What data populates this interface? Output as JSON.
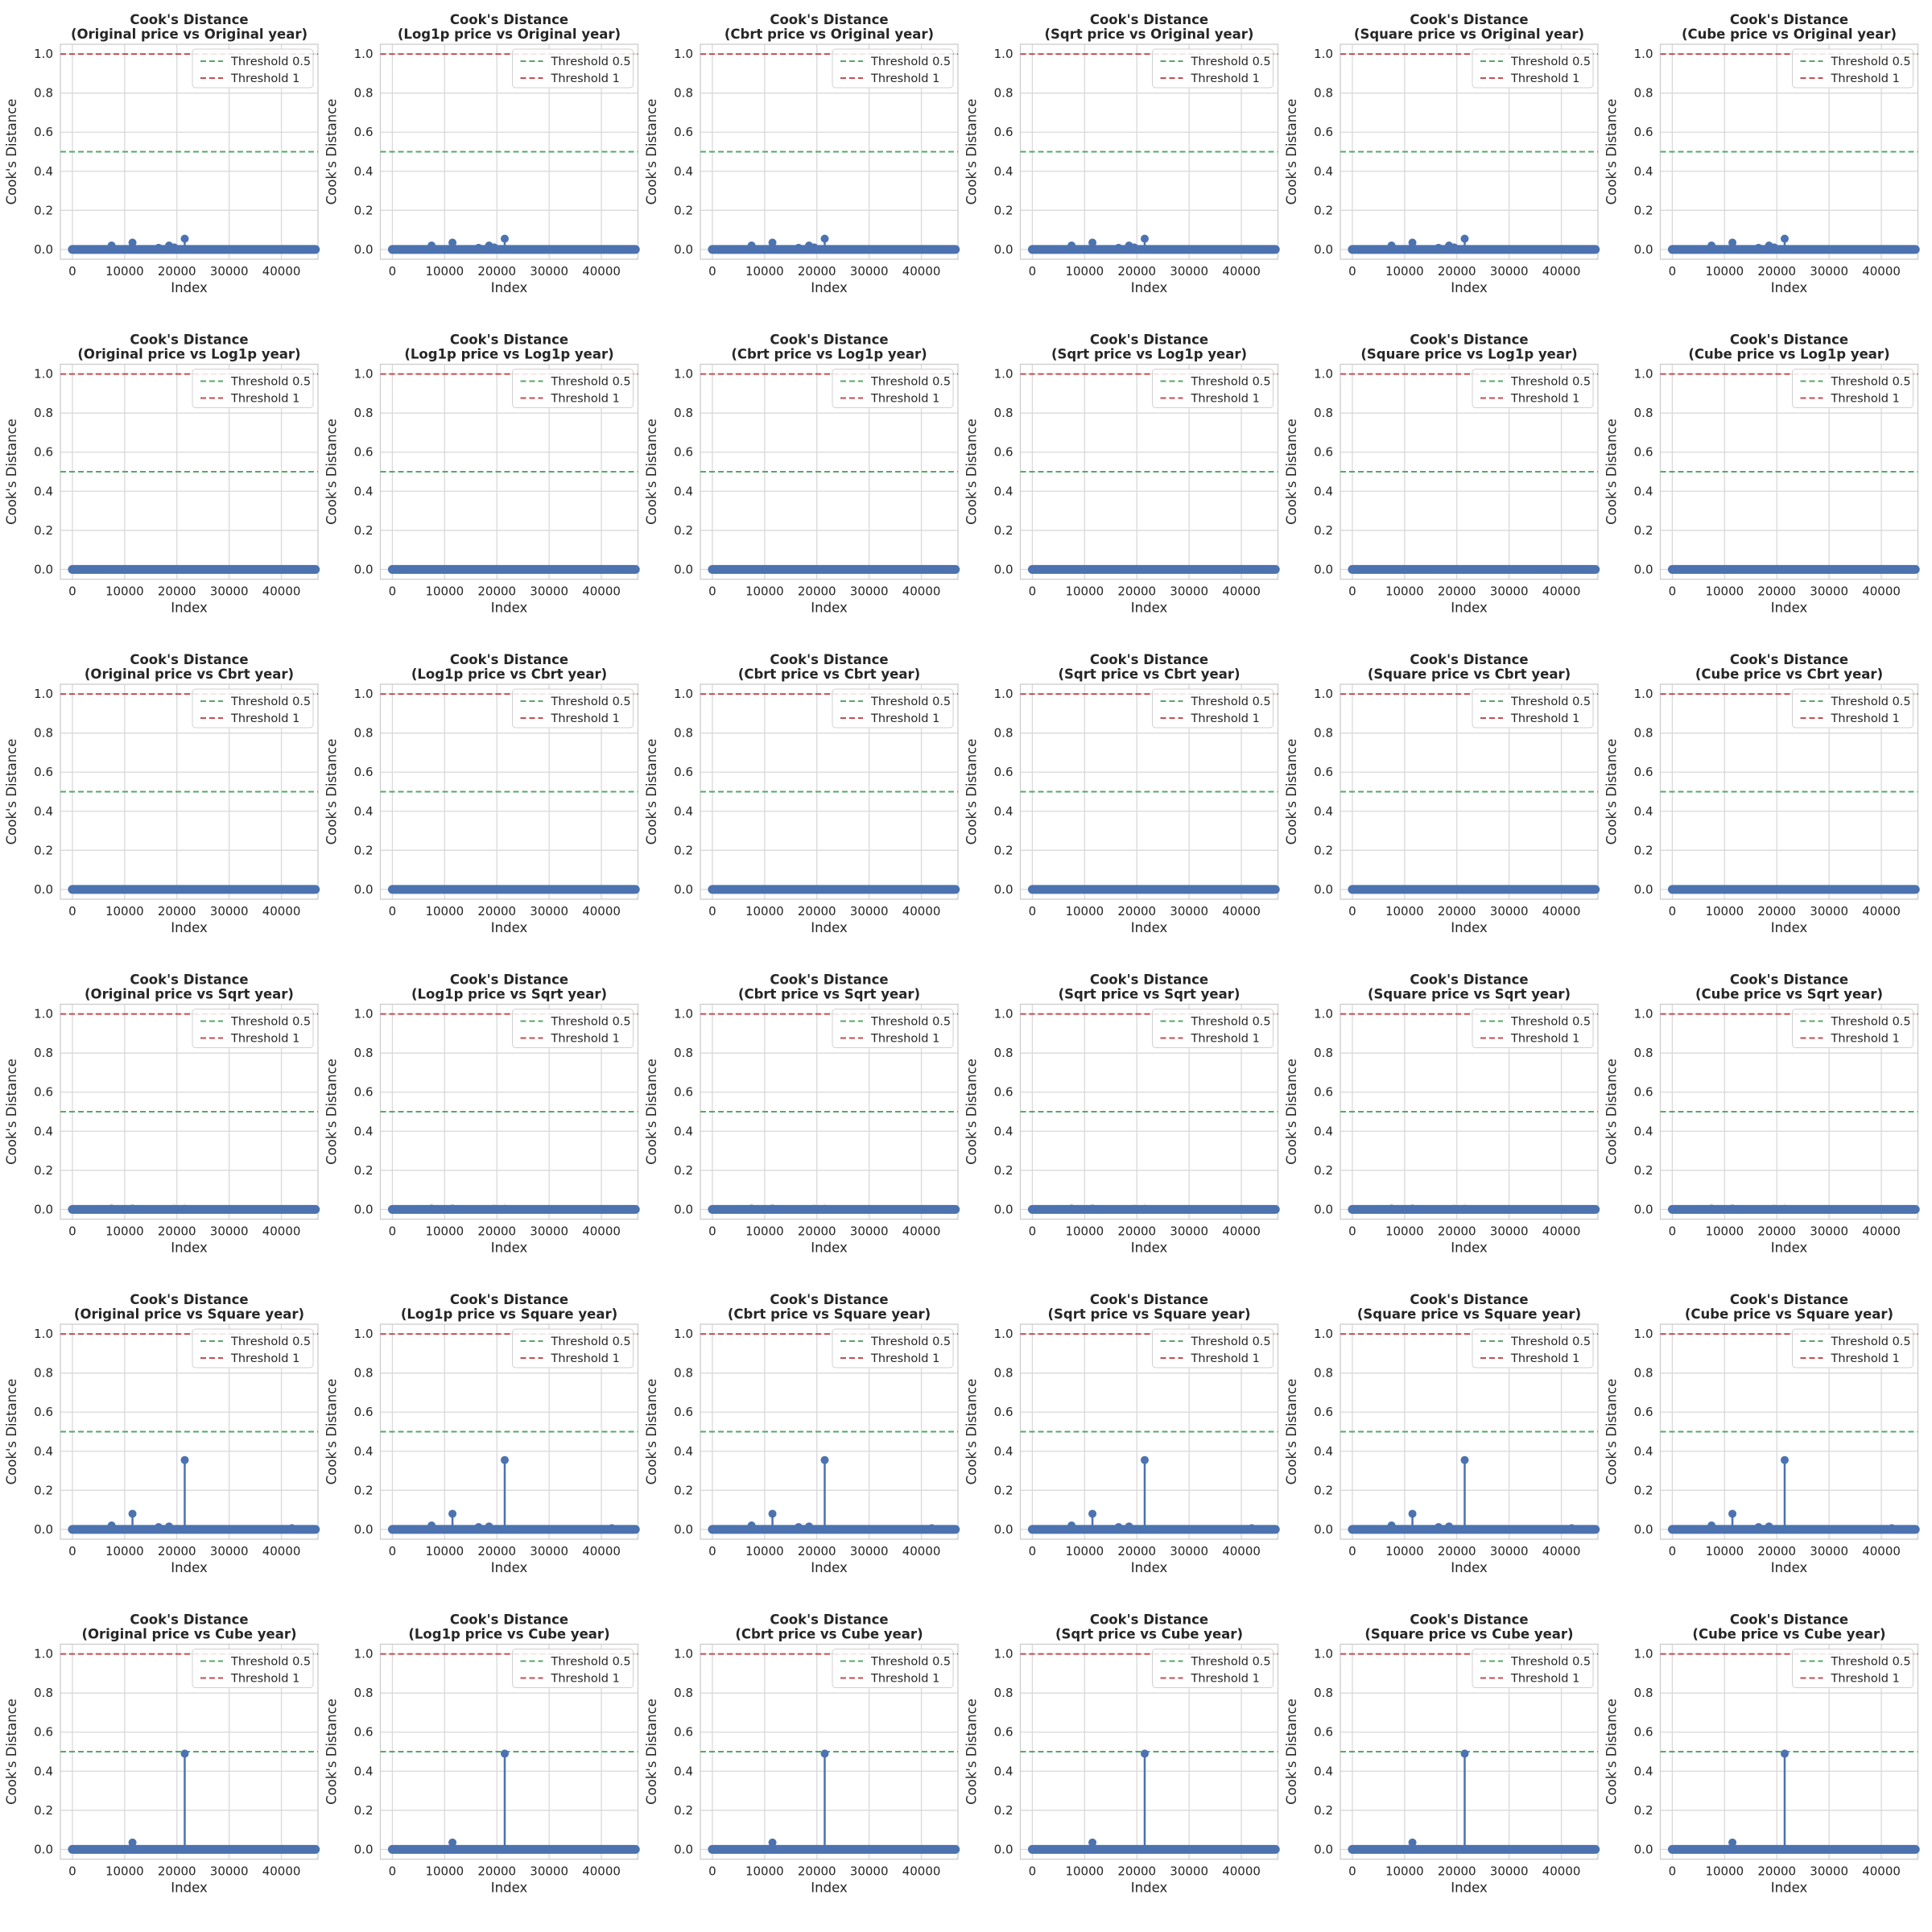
{
  "figure": {
    "title_prefix": "Cook's Distance",
    "x_axis_label": "Index",
    "y_axis_label": "Cook's Distance"
  },
  "chart_data": {
    "type": "scatter",
    "layout": "6x6 grid of stem plots (rows: year transform, columns: price transform)",
    "colors": {
      "stem": "#4c72b0",
      "threshold_05": "#55a868",
      "threshold_1": "#c44e52",
      "grid": "#d9d9d9"
    },
    "row_labels": [
      "Original year",
      "Log1p year",
      "Cbrt year",
      "Sqrt year",
      "Square year",
      "Cube year"
    ],
    "col_labels": [
      "Original price",
      "Log1p price",
      "Cbrt price",
      "Sqrt price",
      "Square price",
      "Cube price"
    ],
    "xlim": [
      -2300,
      47000
    ],
    "ylim": [
      -0.05,
      1.05
    ],
    "xticks": [
      0,
      10000,
      20000,
      30000,
      40000
    ],
    "yticks": [
      0.0,
      0.2,
      0.4,
      0.6,
      0.8,
      1.0
    ],
    "ytick_labels": [
      "0.0",
      "0.2",
      "0.4",
      "0.6",
      "0.8",
      "1.0"
    ],
    "n_points": 46500,
    "thresholds": [
      {
        "label": "Threshold 0.5",
        "value": 0.5,
        "color": "#55a868"
      },
      {
        "label": "Threshold 1",
        "value": 1.0,
        "color": "#c44e52"
      }
    ],
    "legend_position": "upper right",
    "row_spikes": [
      [
        {
          "x": 7500,
          "y": 0.02
        },
        {
          "x": 11500,
          "y": 0.035
        },
        {
          "x": 16500,
          "y": 0.008
        },
        {
          "x": 18500,
          "y": 0.02
        },
        {
          "x": 21500,
          "y": 0.055
        },
        {
          "x": 19500,
          "y": 0.01
        }
      ],
      [
        {
          "x": 7500,
          "y": 0.001
        },
        {
          "x": 21500,
          "y": 0.001
        }
      ],
      [
        {
          "x": 7500,
          "y": 0.001
        },
        {
          "x": 21500,
          "y": 0.001
        }
      ],
      [
        {
          "x": 7500,
          "y": 0.004
        },
        {
          "x": 11500,
          "y": 0.004
        },
        {
          "x": 19500,
          "y": 0.003
        },
        {
          "x": 21500,
          "y": 0.003
        }
      ],
      [
        {
          "x": 7500,
          "y": 0.02
        },
        {
          "x": 11500,
          "y": 0.08
        },
        {
          "x": 16500,
          "y": 0.012
        },
        {
          "x": 18500,
          "y": 0.015
        },
        {
          "x": 21500,
          "y": 0.355
        },
        {
          "x": 42000,
          "y": 0.006
        }
      ],
      [
        {
          "x": 11500,
          "y": 0.035
        },
        {
          "x": 21500,
          "y": 0.49
        }
      ]
    ]
  }
}
